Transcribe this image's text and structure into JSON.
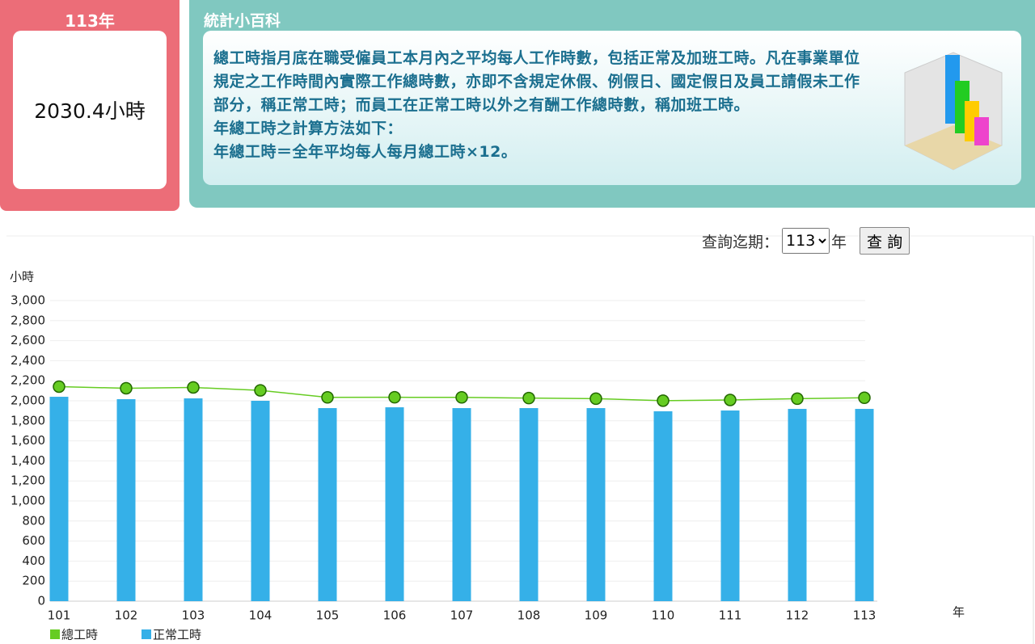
{
  "card": {
    "title": "113年",
    "value": "2030.4小時"
  },
  "info": {
    "title": "統計小百科",
    "paragraphs": [
      "總工時指月底在職受僱員工本月內之平均每人工作時數，包括正常及加班工時。凡在事業單位規定之工作時間內實際工作總時數，亦即不含規定休假、例假日、國定假日及員工請假未工作部分，稱正常工時；而員工在正常工時以外之有酬工作總時數，稱加班工時。",
      "年總工時之計算方法如下：",
      "年總工時＝全年平均每人每月總工時×12。"
    ]
  },
  "query": {
    "label": "查詢迄期：",
    "selected": "113",
    "unit": "年",
    "button": "查 詢"
  },
  "chart_data": {
    "type": "bar-line",
    "y_label": "小時",
    "x_label": "年",
    "categories": [
      "101",
      "102",
      "103",
      "104",
      "105",
      "106",
      "107",
      "108",
      "109",
      "110",
      "111",
      "112",
      "113"
    ],
    "series": [
      {
        "name": "總工時",
        "type": "line",
        "color": "#66cc22",
        "values": [
          2141,
          2125,
          2133,
          2104,
          2034,
          2035,
          2034,
          2027,
          2021,
          2001,
          2008,
          2021,
          2030
        ]
      },
      {
        "name": "正常工時",
        "type": "bar",
        "color": "#35b0e8",
        "values": [
          2040,
          2016,
          2024,
          2000,
          1927,
          1935,
          1927,
          1927,
          1927,
          1895,
          1903,
          1919,
          1919
        ]
      }
    ],
    "ylim": [
      0,
      3000
    ],
    "yticks": [
      0,
      200,
      400,
      600,
      800,
      {
        "value": 1000,
        "label": "1,000"
      },
      {
        "value": 1200,
        "label": "1,200"
      },
      {
        "value": 1400,
        "label": "1,400"
      },
      {
        "value": 1600,
        "label": "1,600"
      },
      {
        "value": 1800,
        "label": "1,800"
      },
      {
        "value": 2000,
        "label": "2,000"
      },
      {
        "value": 2200,
        "label": "2,200"
      },
      {
        "value": 2400,
        "label": "2,400"
      },
      {
        "value": 2600,
        "label": "2,600"
      },
      {
        "value": 2800,
        "label": "2,800"
      },
      {
        "value": 3000,
        "label": "3,000"
      }
    ],
    "grid": true
  }
}
